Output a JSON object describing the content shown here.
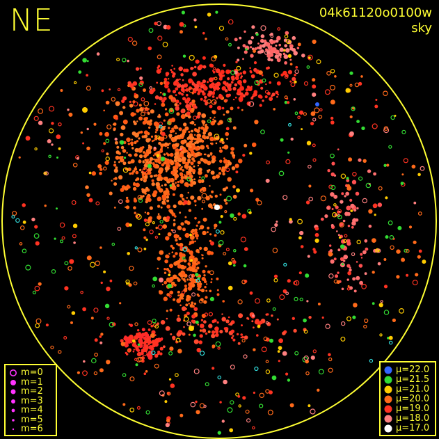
{
  "header": {
    "direction": "NE",
    "frame_id": "04k61120o0100w",
    "frame_type": "sky"
  },
  "colors": {
    "frame": "#ffff33",
    "background": "#000000",
    "magnitude_marker": "#ff33ff"
  },
  "magnitude_legend": [
    {
      "label": "m=0",
      "style": "open-circle"
    },
    {
      "label": "m=1",
      "style": "dot"
    },
    {
      "label": "m=2",
      "style": "dot"
    },
    {
      "label": "m=3",
      "style": "dot"
    },
    {
      "label": "m=4",
      "style": "dot"
    },
    {
      "label": "m=5",
      "style": "dot"
    },
    {
      "label": "m=6",
      "style": "dot"
    }
  ],
  "mu_legend": [
    {
      "label": "μ=22.0",
      "color": "#3366ff"
    },
    {
      "label": "μ=21.5",
      "color": "#33dd33"
    },
    {
      "label": "μ=21.0",
      "color": "#ffcc00"
    },
    {
      "label": "μ=20.0",
      "color": "#ff6a1a"
    },
    {
      "label": "μ=19.0",
      "color": "#ff3322"
    },
    {
      "label": "μ=18.0",
      "color": "#ff8080"
    },
    {
      "label": "μ=17.0",
      "color": "#ffffff"
    }
  ]
}
